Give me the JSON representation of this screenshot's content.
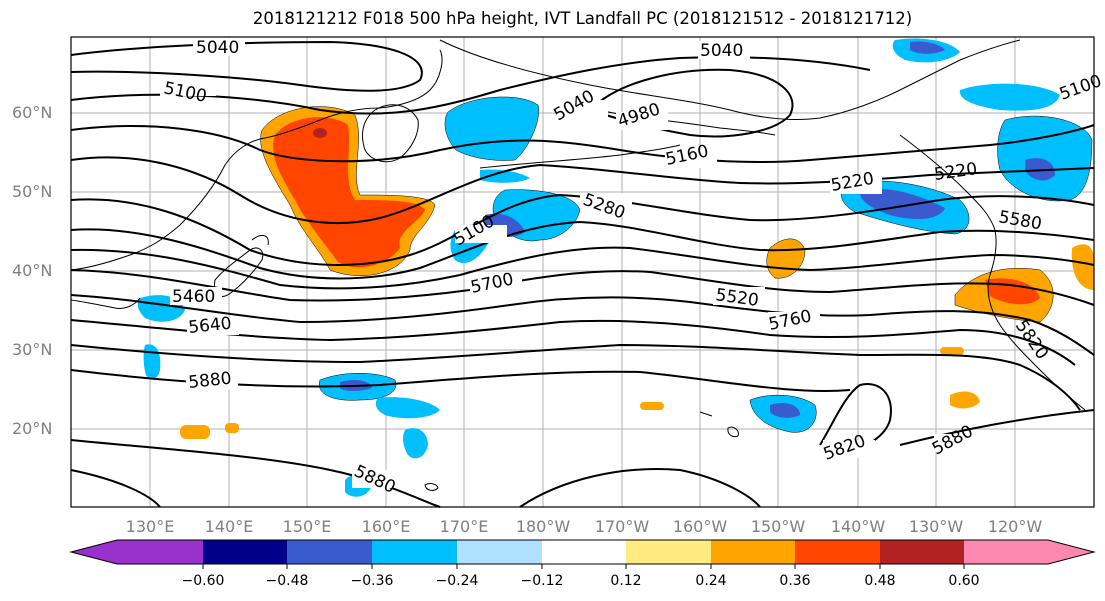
{
  "title": "2018121212 F018 500 hPa height, IVT Landfall PC (2018121512 - 2018121712)",
  "lat_labels": [
    "60°N",
    "50°N",
    "40°N",
    "30°N",
    "20°N"
  ],
  "lon_labels": [
    "130°E",
    "140°E",
    "150°E",
    "160°E",
    "170°E",
    "180°W",
    "170°W",
    "160°W",
    "150°W",
    "140°W",
    "130°W",
    "120°W"
  ],
  "contour_labels": [
    "5040",
    "5040",
    "5100",
    "4980",
    "5040",
    "5160",
    "5220",
    "5280",
    "5100",
    "5700",
    "5460",
    "5640",
    "5880",
    "5520",
    "5760",
    "5820",
    "5880",
    "5880",
    "5580",
    "5820",
    "5100",
    "5220"
  ],
  "colorbar": {
    "ticks": [
      "−0.60",
      "−0.48",
      "−0.36",
      "−0.24",
      "−0.12",
      "0.12",
      "0.24",
      "0.36",
      "0.48",
      "0.60"
    ],
    "colors": [
      "#9932cc",
      "#00008b",
      "#3a5bd0",
      "#00bfff",
      "#b0e0ff",
      "#ffffff",
      "#ffeb80",
      "#ffa500",
      "#ff4500",
      "#b22222",
      "#ff88b0"
    ]
  },
  "colors": {
    "height_contours": "#000000",
    "grid": "#b0b0b0",
    "tick_text": "#808080"
  }
}
